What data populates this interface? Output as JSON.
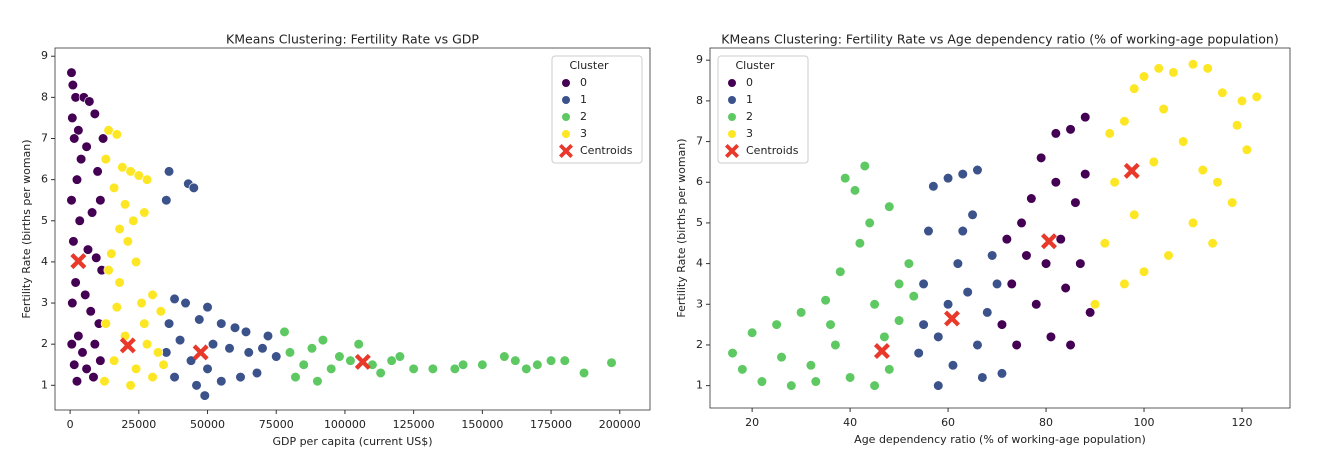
{
  "chart_data": [
    {
      "type": "scatter",
      "title": "KMeans Clustering: Fertility Rate vs GDP",
      "x_label": "GDP per capita (current US$)",
      "y_label": "Fertility Rate (births per woman)",
      "xlim": [
        -5500,
        211000
      ],
      "ylim": [
        0.4,
        9.2
      ],
      "xticks": [
        0,
        25000,
        50000,
        75000,
        100000,
        125000,
        150000,
        175000,
        200000
      ],
      "yticks": [
        1,
        2,
        3,
        4,
        5,
        6,
        7,
        8,
        9
      ],
      "legend_title": "Cluster",
      "legend": "upper right",
      "series": [
        {
          "name": "0",
          "color": "#440154",
          "x": [
            500,
            1000,
            2000,
            800,
            3000,
            5000,
            7000,
            9000,
            1500,
            4000,
            6000,
            10000,
            11000,
            2500,
            500,
            8000,
            3500,
            1200,
            6500,
            9500,
            11500,
            2000,
            5500,
            800,
            7500,
            10500,
            3000,
            600,
            9000,
            4500,
            11000,
            1500,
            6000,
            8500,
            2500,
            12000
          ],
          "values": [
            8.6,
            8.3,
            8.0,
            7.5,
            7.2,
            8.0,
            7.9,
            7.6,
            7.0,
            6.5,
            6.8,
            6.2,
            5.5,
            6.0,
            5.5,
            5.2,
            5.0,
            4.5,
            4.3,
            4.1,
            3.8,
            3.5,
            3.2,
            3.0,
            2.8,
            2.5,
            2.2,
            2.0,
            2.0,
            1.8,
            1.6,
            1.5,
            1.4,
            1.2,
            1.1,
            7.0
          ]
        },
        {
          "name": "1",
          "color": "#3b528b",
          "x": [
            36000,
            35000,
            43000,
            45000,
            38000,
            42000,
            50000,
            47000,
            55000,
            60000,
            36000,
            40000,
            52000,
            58000,
            65000,
            70000,
            75000,
            44000,
            50000,
            62000,
            68000,
            38000,
            46000,
            49000,
            55000,
            72000,
            64000,
            35000
          ],
          "values": [
            6.2,
            5.5,
            5.9,
            5.8,
            3.1,
            3.0,
            2.9,
            2.6,
            2.5,
            2.4,
            2.5,
            2.1,
            2.0,
            1.9,
            1.8,
            1.9,
            1.7,
            1.6,
            1.4,
            1.2,
            1.3,
            1.2,
            1.0,
            0.75,
            1.1,
            2.2,
            2.3,
            1.8
          ]
        },
        {
          "name": "2",
          "color": "#5ec962",
          "x": [
            78000,
            80000,
            85000,
            88000,
            92000,
            95000,
            98000,
            102000,
            105000,
            110000,
            113000,
            117000,
            120000,
            125000,
            132000,
            140000,
            143000,
            150000,
            158000,
            162000,
            166000,
            170000,
            175000,
            180000,
            187000,
            197000,
            82000,
            90000
          ],
          "values": [
            2.3,
            1.8,
            1.5,
            1.9,
            2.1,
            1.4,
            1.7,
            1.6,
            2.0,
            1.5,
            1.3,
            1.6,
            1.7,
            1.4,
            1.4,
            1.4,
            1.5,
            1.5,
            1.7,
            1.6,
            1.4,
            1.5,
            1.6,
            1.6,
            1.3,
            1.55,
            1.2,
            1.1
          ]
        },
        {
          "name": "3",
          "color": "#fde725",
          "x": [
            14000,
            17000,
            13000,
            19000,
            22000,
            25000,
            28000,
            16000,
            20000,
            23000,
            27000,
            18000,
            21000,
            15000,
            24000,
            14000,
            30000,
            18000,
            26000,
            33000,
            13000,
            20000,
            28000,
            32000,
            16000,
            24000,
            30000,
            12500,
            22000,
            34000,
            17000,
            27000
          ],
          "values": [
            7.2,
            7.1,
            6.5,
            6.3,
            6.2,
            6.1,
            6.0,
            5.8,
            5.4,
            5.0,
            5.2,
            4.8,
            4.5,
            4.2,
            4.0,
            3.8,
            3.2,
            3.5,
            3.0,
            2.8,
            2.5,
            2.2,
            2.0,
            1.8,
            1.6,
            1.4,
            1.2,
            1.1,
            1.0,
            1.5,
            2.9,
            2.5
          ]
        },
        {
          "name": "Centroids",
          "color": "#e8392b",
          "marker": "X",
          "x": [
            3000,
            21000,
            47500,
            106500
          ],
          "values": [
            4.02,
            1.97,
            1.8,
            1.57
          ]
        }
      ]
    },
    {
      "type": "scatter",
      "title": "KMeans Clustering: Fertility Rate vs Age dependency ratio (% of working-age population)",
      "x_label": "Age dependency ratio (% of working-age population)",
      "y_label": "Fertility Rate (births per woman)",
      "xlim": [
        11.4,
        129.8
      ],
      "ylim": [
        0.45,
        9.3
      ],
      "xticks": [
        20,
        40,
        60,
        80,
        100,
        120
      ],
      "yticks": [
        1,
        2,
        3,
        4,
        5,
        6,
        7,
        8,
        9
      ],
      "legend_title": "Cluster",
      "legend": "upper left",
      "series": [
        {
          "name": "0",
          "color": "#440154",
          "x": [
            71,
            73,
            75,
            77,
            79,
            82,
            85,
            88,
            80,
            83,
            86,
            88,
            74,
            78,
            81,
            84,
            87,
            89,
            76,
            82,
            85,
            72
          ],
          "values": [
            2.5,
            3.5,
            5.0,
            5.6,
            6.6,
            7.2,
            7.3,
            7.6,
            4.0,
            4.6,
            5.5,
            6.2,
            2.0,
            3.0,
            2.2,
            3.4,
            4.0,
            2.8,
            4.2,
            6.0,
            2.0,
            4.6
          ]
        },
        {
          "name": "1",
          "color": "#3b528b",
          "x": [
            54,
            55,
            56,
            57,
            60,
            63,
            66,
            58,
            60,
            62,
            64,
            66,
            68,
            70,
            71,
            58,
            61,
            67,
            63,
            69,
            55,
            65
          ],
          "values": [
            1.8,
            3.5,
            4.8,
            5.9,
            6.1,
            6.2,
            6.3,
            2.2,
            3.0,
            4.0,
            3.3,
            2.0,
            2.8,
            3.5,
            1.3,
            1.0,
            1.5,
            1.2,
            4.8,
            4.2,
            2.5,
            5.2
          ]
        },
        {
          "name": "2",
          "color": "#5ec962",
          "x": [
            16,
            18,
            20,
            22,
            25,
            28,
            30,
            32,
            35,
            37,
            38,
            39,
            41,
            43,
            44,
            42,
            45,
            47,
            48,
            50,
            52,
            53,
            40,
            45,
            33,
            48,
            50,
            36,
            26
          ],
          "values": [
            1.8,
            1.4,
            2.3,
            1.1,
            2.5,
            1.0,
            2.8,
            1.5,
            3.1,
            2.0,
            3.8,
            6.1,
            5.8,
            6.4,
            5.0,
            4.5,
            3.0,
            2.2,
            1.4,
            2.6,
            4.0,
            3.2,
            1.2,
            1.0,
            1.1,
            5.4,
            3.5,
            2.5,
            1.7
          ]
        },
        {
          "name": "3",
          "color": "#fde725",
          "x": [
            90,
            92,
            94,
            96,
            98,
            100,
            103,
            106,
            110,
            113,
            116,
            119,
            121,
            123,
            120,
            118,
            114,
            110,
            105,
            100,
            96,
            102,
            108,
            112,
            98,
            93,
            104,
            115
          ],
          "values": [
            3.0,
            4.5,
            6.0,
            7.5,
            8.3,
            8.6,
            8.8,
            8.7,
            8.9,
            8.8,
            8.2,
            7.4,
            6.8,
            8.1,
            8.0,
            5.5,
            4.5,
            5.0,
            4.2,
            3.8,
            3.5,
            6.5,
            7.0,
            6.3,
            5.2,
            7.2,
            7.8,
            6.0
          ]
        },
        {
          "name": "Centroids",
          "color": "#e8392b",
          "marker": "X",
          "x": [
            46.5,
            60.8,
            80.6,
            97.5
          ],
          "values": [
            1.85,
            2.65,
            4.55,
            6.28
          ]
        }
      ]
    }
  ]
}
